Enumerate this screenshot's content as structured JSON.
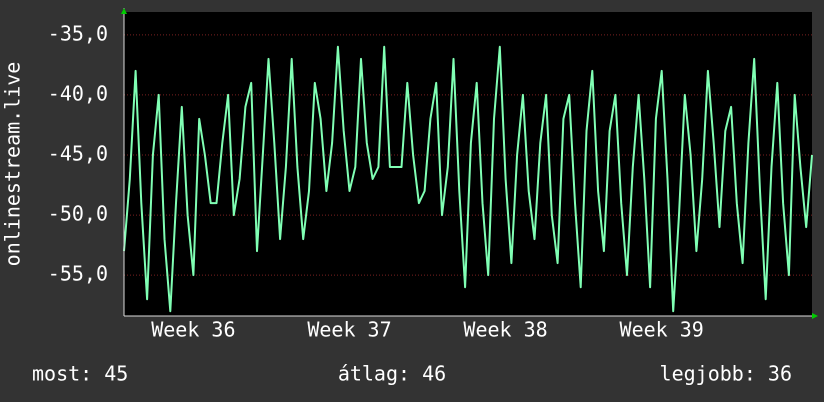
{
  "chart_data": {
    "type": "line",
    "y_label": "onlinestream.live",
    "categories": [
      null,
      null,
      null,
      null,
      null,
      null,
      null,
      null,
      null,
      null,
      null,
      null,
      "Week 36",
      null,
      null,
      null,
      null,
      null,
      null,
      null,
      null,
      null,
      null,
      null,
      null,
      null,
      null,
      null,
      null,
      null,
      null,
      null,
      null,
      null,
      null,
      null,
      null,
      null,
      null,
      "Week 37",
      null,
      null,
      null,
      null,
      null,
      null,
      null,
      null,
      null,
      null,
      null,
      null,
      null,
      null,
      null,
      null,
      null,
      null,
      null,
      null,
      null,
      null,
      null,
      null,
      null,
      null,
      "Week 38",
      null,
      null,
      null,
      null,
      null,
      null,
      null,
      null,
      null,
      null,
      null,
      null,
      null,
      null,
      null,
      null,
      null,
      null,
      null,
      null,
      null,
      null,
      null,
      null,
      null,
      null,
      "Week 39",
      null,
      null,
      null,
      null,
      null,
      null,
      null,
      null,
      null,
      null,
      null,
      null,
      null,
      null,
      null,
      null,
      null,
      null,
      null,
      null,
      null,
      null,
      null,
      null,
      null,
      null
    ],
    "series": [
      {
        "color": "#80ffb4",
        "values": [
          -53,
          -47,
          -38,
          -49,
          -57,
          -45,
          -40,
          -52,
          -58,
          -49,
          -41,
          -50,
          -55,
          -42,
          -45,
          -49,
          -49,
          -44,
          -40,
          -50,
          -47,
          -41,
          -39,
          -53,
          -45,
          -37,
          -44,
          -52,
          -46,
          -37,
          -46,
          -52,
          -48,
          -39,
          -42,
          -48,
          -44,
          -36,
          -43,
          -48,
          -46,
          -37,
          -44,
          -47,
          -46,
          -36,
          -46,
          -46,
          -46,
          -39,
          -45,
          -49,
          -48,
          -42,
          -39,
          -50,
          -46,
          -37,
          -48,
          -56,
          -44,
          -39,
          -49,
          -55,
          -42,
          -36,
          -47,
          -54,
          -45,
          -40,
          -48,
          -52,
          -44,
          -40,
          -50,
          -54,
          -42,
          -40,
          -49,
          -56,
          -43,
          -38,
          -48,
          -53,
          -43,
          -40,
          -49,
          -55,
          -46,
          -40,
          -47,
          -56,
          -42,
          -38,
          -47,
          -58,
          -50,
          -40,
          -45,
          -53,
          -47,
          -38,
          -44,
          -51,
          -43,
          -41,
          -49,
          -54,
          -44,
          -37,
          -48,
          -57,
          -46,
          -39,
          -49,
          -55,
          -40,
          -46,
          -51,
          -45
        ]
      }
    ],
    "ylim": [
      -58.4,
      -33.1
    ],
    "yticks": [
      {
        "value": -35,
        "label": "-35,0"
      },
      {
        "value": -40,
        "label": "-40,0"
      },
      {
        "value": -45,
        "label": "-45,0"
      },
      {
        "value": -50,
        "label": "-50,0"
      },
      {
        "value": -55,
        "label": "-55,0"
      }
    ],
    "grid": true,
    "stats": [
      "most: 45",
      "átlag: 46",
      "legjobb: 36"
    ]
  }
}
